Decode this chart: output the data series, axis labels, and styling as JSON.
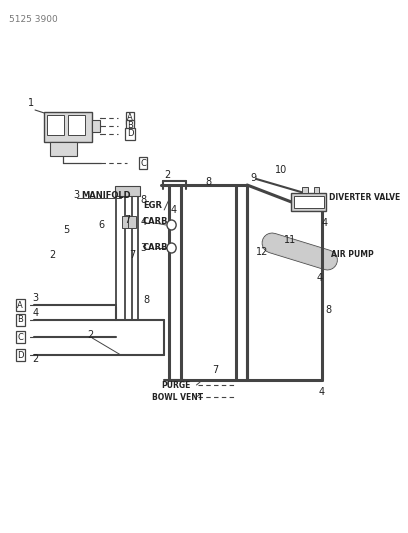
{
  "bg_color": "#ffffff",
  "line_color": "#444444",
  "text_color": "#222222",
  "fig_width": 4.08,
  "fig_height": 5.33,
  "dpi": 100,
  "part_number": "5125 3900",
  "labels": {
    "manifold": "MANIFOLD",
    "egr": "EGR",
    "carb1": "CARB",
    "carb2": "CARB",
    "diverter": "DIVERTER VALVE",
    "air_pump": "AIR PUMP",
    "purge": "PURGE",
    "bowl_vent": "BOWL VENT"
  }
}
